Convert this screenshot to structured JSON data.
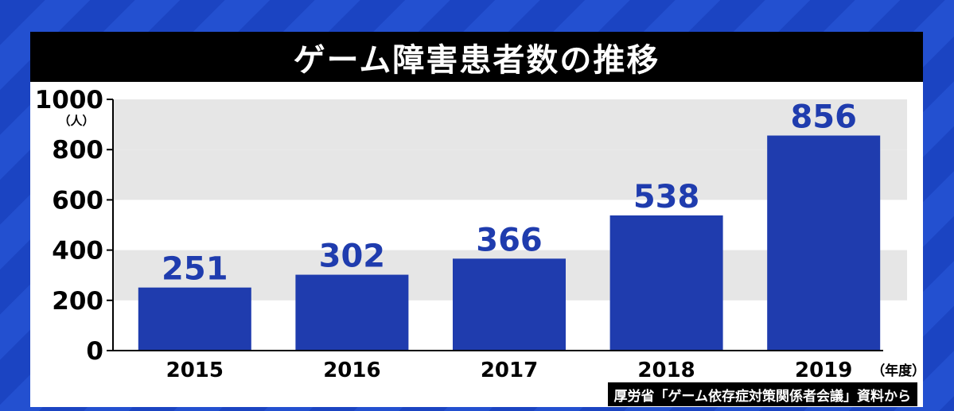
{
  "title": "ゲーム障害患者数の推移",
  "source": "厚労省「ゲーム依存症対策関係者会議」資料から",
  "colors": {
    "bar": "#1f3cae",
    "value_label": "#1f3cae",
    "band": "#e6e6e6",
    "axis": "#000000"
  },
  "chart_data": {
    "type": "bar",
    "categories": [
      "2015",
      "2016",
      "2017",
      "2018",
      "2019"
    ],
    "values": [
      251,
      302,
      366,
      538,
      856
    ],
    "data_labels": [
      "251",
      "302",
      "366",
      "538",
      "856"
    ],
    "yticks": [
      0,
      200,
      400,
      600,
      800,
      1000
    ],
    "ylim": [
      0,
      1000
    ],
    "yunit": "（人）",
    "xunit": "（年度）",
    "grid": "alternating horizontal bands"
  }
}
